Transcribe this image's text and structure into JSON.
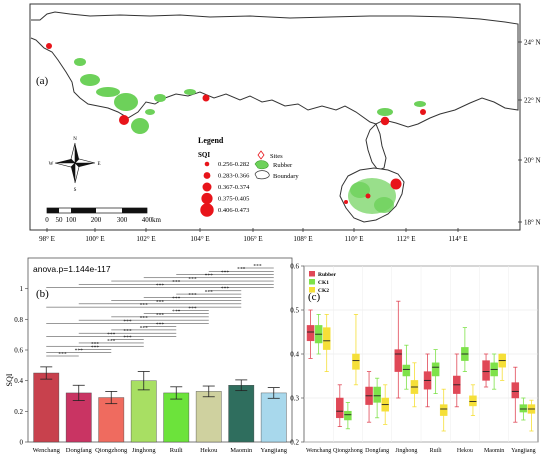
{
  "figure": {
    "panel_a_label": "(a)",
    "panel_b_label": "(b)",
    "panel_c_label": "(c)"
  },
  "map": {
    "lon_ticks": [
      "98° E",
      "100° E",
      "102° E",
      "104° E",
      "106° E",
      "108° E",
      "110° E",
      "112° E",
      "114° E"
    ],
    "lat_ticks": [
      "24° N",
      "22° N",
      "20° N",
      "18° N"
    ],
    "scale_labels": [
      "0",
      "50",
      "100",
      "200",
      "300",
      "400"
    ],
    "scale_unit": "km",
    "north_arrow": {
      "n": "N",
      "s": "S",
      "e": "E",
      "w": "W"
    },
    "legend": {
      "title": "Legend",
      "sqi_title": "SQI",
      "sqi_classes": [
        {
          "label": "0.256-0.282",
          "size": 1
        },
        {
          "label": "0.283-0.366",
          "size": 2
        },
        {
          "label": "0.367-0.374",
          "size": 3
        },
        {
          "label": "0.375-0.405",
          "size": 4
        },
        {
          "label": "0.406-0.473",
          "size": 5
        }
      ],
      "sites_label": "Sites",
      "rubber_label": "Rubber",
      "boundary_label": "Boundary"
    },
    "colors": {
      "site": "#e8141a",
      "rubber": "#6dd15a",
      "boundary": "#333333"
    }
  },
  "chart_data": [
    {
      "type": "bar",
      "panel": "(b)",
      "annotation": "anova.p=1.144e-117",
      "ylabel": "SQI",
      "xlabel": "",
      "ylim": [
        0,
        1.2
      ],
      "yticks": [
        "0",
        "0.2",
        "0.4",
        "0.6",
        "0.8",
        "1"
      ],
      "categories": [
        "Wenchang",
        "Dongfang",
        "Qiongzhong",
        "Jinghong",
        "Ruili",
        "Hekou",
        "Maomin",
        "Yangjiang"
      ],
      "values": [
        0.45,
        0.32,
        0.29,
        0.4,
        0.32,
        0.33,
        0.37,
        0.32
      ],
      "errors": [
        0.04,
        0.05,
        0.04,
        0.06,
        0.04,
        0.035,
        0.035,
        0.035
      ],
      "colors": [
        "#c8414d",
        "#c93463",
        "#ef6b5f",
        "#a8df63",
        "#6ce33b",
        "#cfd19f",
        "#2f6e5e",
        "#a8d8ec"
      ],
      "significance_label": "***",
      "comparisons": [
        [
          6,
          7
        ],
        [
          5,
          7
        ],
        [
          4,
          7
        ],
        [
          3,
          7
        ],
        [
          2,
          7
        ],
        [
          1,
          7
        ],
        [
          0,
          7
        ],
        [
          5,
          6
        ],
        [
          4,
          6
        ],
        [
          3,
          6
        ],
        [
          2,
          6
        ],
        [
          1,
          6
        ],
        [
          0,
          6
        ],
        [
          4,
          5
        ],
        [
          3,
          5
        ],
        [
          2,
          5
        ],
        [
          1,
          5
        ],
        [
          0,
          5
        ],
        [
          3,
          4
        ],
        [
          2,
          4
        ],
        [
          1,
          4
        ],
        [
          0,
          4
        ],
        [
          2,
          3
        ],
        [
          1,
          3
        ],
        [
          0,
          3
        ],
        [
          1,
          2
        ],
        [
          0,
          2
        ],
        [
          0,
          1
        ]
      ]
    },
    {
      "type": "box",
      "panel": "(c)",
      "ylabel": "",
      "ylim": [
        0.2,
        0.6
      ],
      "yticks": [
        "0.2",
        "0.3",
        "0.4",
        "0.5",
        "0.6"
      ],
      "grid": true,
      "legend_position": "top-left",
      "categories": [
        "Wenchang",
        "Qiongzhong",
        "Dongfang",
        "Jinghong",
        "Ruili",
        "Hekou",
        "Maomin",
        "Yangjiang"
      ],
      "series": [
        {
          "name": "Rubber",
          "color": "#e04857",
          "boxes": [
            [
              0.39,
              0.43,
              0.45,
              0.465,
              0.5
            ],
            [
              0.235,
              0.255,
              0.27,
              0.3,
              0.33
            ],
            [
              0.245,
              0.285,
              0.305,
              0.325,
              0.36
            ],
            [
              0.3,
              0.36,
              0.4,
              0.41,
              0.52
            ],
            [
              0.28,
              0.32,
              0.34,
              0.36,
              0.4
            ],
            [
              0.28,
              0.31,
              0.33,
              0.35,
              0.4
            ],
            [
              0.325,
              0.34,
              0.36,
              0.385,
              0.4
            ],
            [
              0.245,
              0.3,
              0.315,
              0.335,
              0.37
            ]
          ]
        },
        {
          "name": "CK1",
          "color": "#7ee24a",
          "boxes": [
            [
              0.4,
              0.425,
              0.445,
              0.465,
              0.49
            ],
            [
              0.23,
              0.25,
              0.262,
              0.27,
              0.29
            ],
            [
              0.255,
              0.29,
              0.305,
              0.325,
              0.345
            ],
            [
              0.32,
              0.35,
              0.365,
              0.375,
              0.42
            ],
            [
              0.31,
              0.35,
              0.37,
              0.38,
              0.41
            ],
            [
              0.36,
              0.385,
              0.4,
              0.415,
              0.46
            ],
            [
              0.32,
              0.35,
              0.365,
              0.38,
              0.4
            ],
            [
              0.25,
              0.268,
              0.275,
              0.285,
              0.3
            ]
          ]
        },
        {
          "name": "CK2",
          "color": "#f5df38",
          "boxes": [
            [
              0.36,
              0.41,
              0.43,
              0.46,
              0.49
            ],
            [
              0.33,
              0.365,
              0.385,
              0.4,
              0.49
            ],
            [
              0.24,
              0.27,
              0.285,
              0.3,
              0.33
            ],
            [
              0.28,
              0.31,
              0.325,
              0.34,
              0.38
            ],
            [
              0.225,
              0.26,
              0.275,
              0.285,
              0.32
            ],
            [
              0.26,
              0.282,
              0.292,
              0.305,
              0.33
            ],
            [
              0.34,
              0.37,
              0.385,
              0.4,
              0.4
            ],
            [
              0.225,
              0.265,
              0.275,
              0.285,
              0.295
            ]
          ]
        }
      ]
    }
  ]
}
